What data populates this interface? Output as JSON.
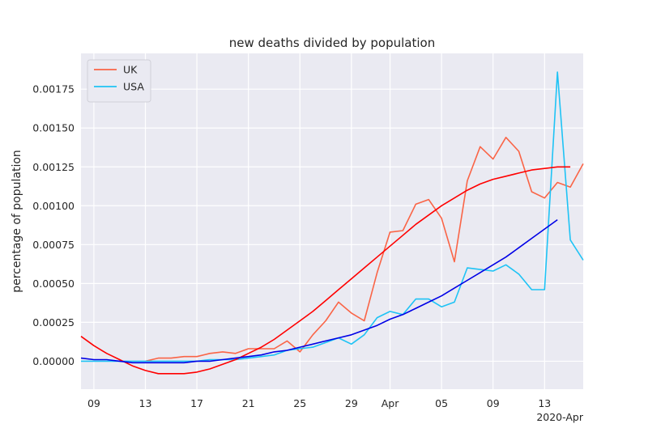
{
  "chart_data": {
    "type": "line",
    "title": "new deaths divided by population",
    "ylabel": "percentage of population",
    "xlabel": "",
    "x_offset_label": "2020-Apr",
    "x_dates": [
      "2020-03-08",
      "2020-03-09",
      "2020-03-10",
      "2020-03-11",
      "2020-03-12",
      "2020-03-13",
      "2020-03-14",
      "2020-03-15",
      "2020-03-16",
      "2020-03-17",
      "2020-03-18",
      "2020-03-19",
      "2020-03-20",
      "2020-03-21",
      "2020-03-22",
      "2020-03-23",
      "2020-03-24",
      "2020-03-25",
      "2020-03-26",
      "2020-03-27",
      "2020-03-28",
      "2020-03-29",
      "2020-03-30",
      "2020-03-31",
      "2020-04-01",
      "2020-04-02",
      "2020-04-03",
      "2020-04-04",
      "2020-04-05",
      "2020-04-06",
      "2020-04-07",
      "2020-04-08",
      "2020-04-09",
      "2020-04-10",
      "2020-04-11",
      "2020-04-12",
      "2020-04-13",
      "2020-04-14",
      "2020-04-15",
      "2020-04-16"
    ],
    "xlim": [
      "2020-03-08",
      "2020-04-16"
    ],
    "ylim": [
      -0.00018,
      0.00198
    ],
    "x_ticks": [
      {
        "date": "2020-03-09",
        "label": "09"
      },
      {
        "date": "2020-03-13",
        "label": "13"
      },
      {
        "date": "2020-03-17",
        "label": "17"
      },
      {
        "date": "2020-03-21",
        "label": "21"
      },
      {
        "date": "2020-03-25",
        "label": "25"
      },
      {
        "date": "2020-03-29",
        "label": "29"
      },
      {
        "date": "2020-04-01",
        "label": "Apr"
      },
      {
        "date": "2020-04-05",
        "label": "05"
      },
      {
        "date": "2020-04-09",
        "label": "09"
      },
      {
        "date": "2020-04-13",
        "label": "13"
      }
    ],
    "y_ticks": [
      0.0,
      0.00025,
      0.0005,
      0.00075,
      0.001,
      0.00125,
      0.0015,
      0.00175
    ],
    "y_tick_labels": [
      "0.00000",
      "0.00025",
      "0.00050",
      "0.00075",
      "0.00100",
      "0.00125",
      "0.00150",
      "0.00175"
    ],
    "grid": true,
    "legend_position": "top-left",
    "series": [
      {
        "name": "UK",
        "color": "#fa6446",
        "values": [
          null,
          null,
          null,
          null,
          null,
          0.0,
          2e-05,
          2e-05,
          3e-05,
          3e-05,
          5e-05,
          6e-05,
          5e-05,
          8e-05,
          8e-05,
          8e-05,
          0.00013,
          6e-05,
          0.00017,
          0.00026,
          0.00038,
          0.00031,
          0.00026,
          0.00057,
          0.00083,
          0.00084,
          0.00101,
          0.00104,
          0.00092,
          0.00064,
          0.00116,
          0.00138,
          0.0013,
          0.00144,
          0.00135,
          0.00109,
          0.00105,
          0.00115,
          0.00112,
          0.00127
        ]
      },
      {
        "name": "USA",
        "color": "#1ec3f5",
        "values": [
          0.0,
          0.0,
          0.0,
          0.0,
          0.0,
          0.0,
          0.0,
          0.0,
          0.0,
          0.0,
          1e-05,
          1e-05,
          1e-05,
          2e-05,
          3e-05,
          4e-05,
          7e-05,
          8e-05,
          9e-05,
          0.00012,
          0.00015,
          0.00011,
          0.00017,
          0.00028,
          0.00032,
          0.0003,
          0.0004,
          0.0004,
          0.00035,
          0.00038,
          0.0006,
          0.00059,
          0.00058,
          0.00062,
          0.00056,
          0.00046,
          0.00046,
          0.00186,
          0.00078,
          0.00065
        ]
      },
      {
        "name": "",
        "color": "#ff0000",
        "values": [
          0.00016,
          0.0001,
          5e-05,
          1e-05,
          -3e-05,
          -6e-05,
          -8e-05,
          -8e-05,
          -8e-05,
          -7e-05,
          -5e-05,
          -2e-05,
          1e-05,
          5e-05,
          9e-05,
          0.00014,
          0.0002,
          0.00026,
          0.00032,
          0.00039,
          0.00046,
          0.00053,
          0.0006,
          0.00067,
          0.00074,
          0.00081,
          0.00088,
          0.00094,
          0.001,
          0.00105,
          0.0011,
          0.00114,
          0.00117,
          0.00119,
          0.00121,
          0.00123,
          0.00124,
          0.00125,
          0.00125,
          null
        ]
      },
      {
        "name": "",
        "color": "#0000e6",
        "values": [
          2e-05,
          1e-05,
          1e-05,
          0.0,
          -1e-05,
          -1e-05,
          -1e-05,
          -1e-05,
          -1e-05,
          0.0,
          0.0,
          1e-05,
          2e-05,
          3e-05,
          4e-05,
          6e-05,
          7e-05,
          9e-05,
          0.00011,
          0.00013,
          0.00015,
          0.00017,
          0.0002,
          0.00023,
          0.00027,
          0.0003,
          0.00034,
          0.00038,
          0.00042,
          0.00047,
          0.00052,
          0.00057,
          0.00062,
          0.00067,
          0.00073,
          0.00079,
          0.00085,
          0.00091,
          null,
          null
        ]
      }
    ]
  }
}
